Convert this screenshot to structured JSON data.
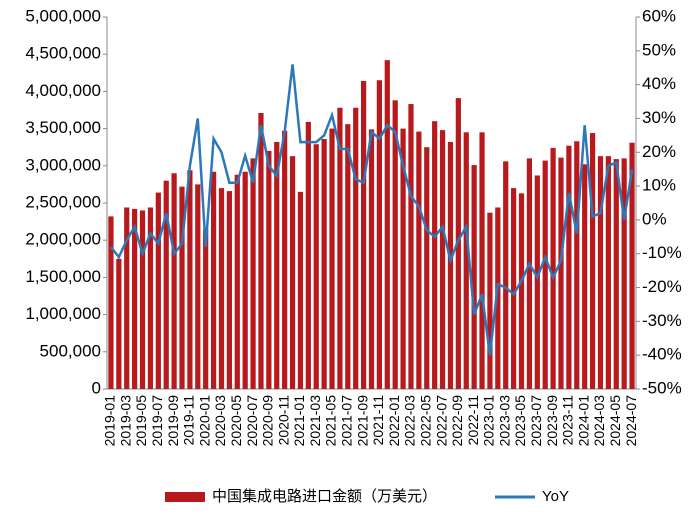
{
  "chart_data": {
    "type": "bar-line",
    "categories": [
      "2019-01",
      null,
      "2019-03",
      null,
      "2019-05",
      null,
      "2019-07",
      null,
      "2019-09",
      null,
      "2019-11",
      null,
      "2020-01",
      null,
      "2020-03",
      null,
      "2020-05",
      null,
      "2020-07",
      null,
      "2020-09",
      null,
      "2020-11",
      null,
      "2021-01",
      null,
      "2021-03",
      null,
      "2021-05",
      null,
      "2021-07",
      null,
      "2021-09",
      null,
      "2021-11",
      null,
      "2022-01",
      null,
      "2022-03",
      null,
      "2022-05",
      null,
      "2022-07",
      null,
      "2022-09",
      null,
      "2022-11",
      null,
      "2023-01",
      null,
      "2023-03",
      null,
      "2023-05",
      null,
      "2023-07",
      null,
      "2023-09",
      null,
      "2023-11",
      null,
      "2024-01",
      null,
      "2024-03",
      null,
      "2024-05",
      null,
      "2024-07"
    ],
    "series": [
      {
        "name": "中国集成电路进口金额（万美元）",
        "color": "#b8191c",
        "kind": "bar",
        "axis": "y",
        "values": [
          2320000,
          1750000,
          2440000,
          2420000,
          2400000,
          2440000,
          2640000,
          2800000,
          2900000,
          2720000,
          2940000,
          2750000,
          2150000,
          2920000,
          2700000,
          2660000,
          2880000,
          2920000,
          3100000,
          3710000,
          3200000,
          3320000,
          3470000,
          3130000,
          2650000,
          3590000,
          3290000,
          3360000,
          3500000,
          3780000,
          3560000,
          3780000,
          4140000,
          3490000,
          4150000,
          4420000,
          3880000,
          3500000,
          3830000,
          3460000,
          3250000,
          3600000,
          3480000,
          3320000,
          3910000,
          3450000,
          3010000,
          3450000,
          2370000,
          2440000,
          3060000,
          2700000,
          2630000,
          3100000,
          2870000,
          3070000,
          3240000,
          3110000,
          3270000,
          3330000,
          3020000,
          3440000,
          3130000,
          3130000,
          3090000,
          3100000,
          3310000
        ]
      },
      {
        "name": "YoY",
        "color": "#2f78b7",
        "kind": "line",
        "axis": "y2",
        "values": [
          -8,
          -11,
          -6,
          -2,
          -10,
          -4,
          -7,
          2,
          -10,
          -7,
          16,
          30,
          -8,
          24,
          20,
          11,
          11,
          19,
          11,
          28,
          16,
          13,
          26,
          46,
          23,
          23,
          23,
          25,
          31,
          21,
          21,
          12,
          11,
          26,
          24,
          28,
          26,
          16,
          7,
          4,
          -3,
          -5,
          -2,
          -12,
          -6,
          -2,
          -28,
          -22,
          -40,
          -19,
          -20,
          -22,
          -18,
          -13,
          -17,
          -11,
          -17,
          -12,
          8,
          -4,
          28,
          1,
          2,
          16,
          17,
          0,
          15
        ]
      }
    ],
    "ylim": [
      0,
      5000000
    ],
    "yticks": [
      0,
      {
        "value": 500000,
        "label": "500,000"
      },
      {
        "value": 1000000,
        "label": "1,000,000"
      },
      {
        "value": 1500000,
        "label": "1,500,000"
      },
      {
        "value": 2000000,
        "label": "2,000,000"
      },
      {
        "value": 2500000,
        "label": "2,500,000"
      },
      {
        "value": 3000000,
        "label": "3,000,000"
      },
      {
        "value": 3500000,
        "label": "3,500,000"
      },
      {
        "value": 4000000,
        "label": "4,000,000"
      },
      {
        "value": 4500000,
        "label": "4,500,000"
      },
      {
        "value": 5000000,
        "label": "5,000,000"
      }
    ],
    "y2lim": [
      -50,
      60
    ],
    "y2ticks": [
      {
        "value": -50,
        "label": "-50%"
      },
      {
        "value": -40,
        "label": "-40%"
      },
      {
        "value": -30,
        "label": "-30%"
      },
      {
        "value": -20,
        "label": "-20%"
      },
      {
        "value": -10,
        "label": "-10%"
      },
      {
        "value": 0,
        "label": "0%"
      },
      {
        "value": 10,
        "label": "10%"
      },
      {
        "value": 20,
        "label": "20%"
      },
      {
        "value": 30,
        "label": "30%"
      },
      {
        "value": 40,
        "label": "40%"
      },
      {
        "value": 50,
        "label": "50%"
      },
      {
        "value": 60,
        "label": "60%"
      }
    ],
    "legend": "bottom"
  }
}
